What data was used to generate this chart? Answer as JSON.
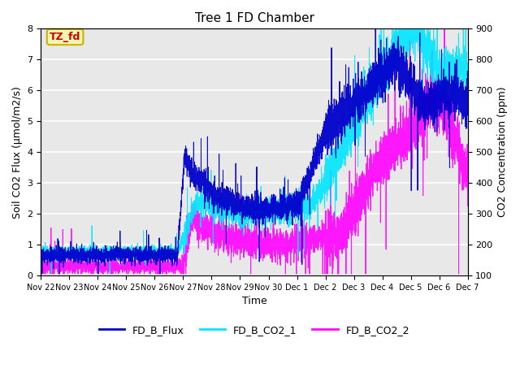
{
  "title": "Tree 1 FD Chamber",
  "xlabel": "Time",
  "ylabel_left": "Soil CO2 Flux (μmol/m2/s)",
  "ylabel_right": "CO2 Concentration (ppm)",
  "ylim_left": [
    0.0,
    8.0
  ],
  "ylim_right": [
    100,
    900
  ],
  "yticks_left": [
    0.0,
    1.0,
    2.0,
    3.0,
    4.0,
    5.0,
    6.0,
    7.0,
    8.0
  ],
  "yticks_right": [
    100,
    200,
    300,
    400,
    500,
    600,
    700,
    800,
    900
  ],
  "bg_color": "#e8e8e8",
  "flux_color": "#0000cc",
  "co2_1_color": "#00e5ff",
  "co2_2_color": "#ff00ff",
  "annotation_text": "TZ_fd",
  "annotation_color": "#cc0000",
  "annotation_bg": "#f5f5b0",
  "annotation_edge": "#c8b400",
  "legend_labels": [
    "FD_B_Flux",
    "FD_B_CO2_1",
    "FD_B_CO2_2"
  ],
  "x_tick_labels": [
    "Nov 22",
    "Nov 23",
    "Nov 24",
    "Nov 25",
    "Nov 26",
    "Nov 27",
    "Nov 28",
    "Nov 29",
    "Nov 30",
    "Dec 1",
    "Dec 2",
    "Dec 3",
    "Dec 4",
    "Dec 5",
    "Dec 6",
    "Dec 7"
  ],
  "figsize": [
    6.4,
    4.8
  ],
  "dpi": 100
}
